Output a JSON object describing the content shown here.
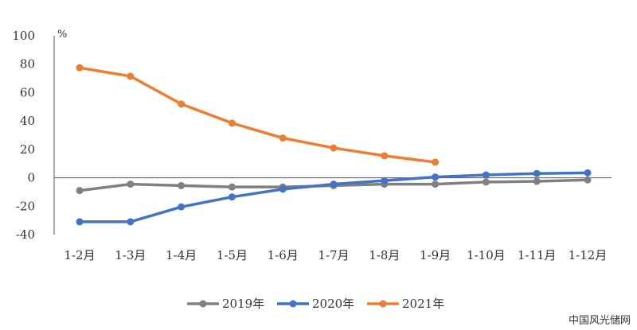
{
  "chart_data": {
    "type": "line",
    "categories": [
      "1-2月",
      "1-3月",
      "1-4月",
      "1-5月",
      "1-6月",
      "1-7月",
      "1-8月",
      "1-9月",
      "1-10月",
      "1-11月",
      "1-12月"
    ],
    "series": [
      {
        "name": "2019年",
        "color": "#808080",
        "values": [
          -9.0,
          -4.5,
          -5.5,
          -6.5,
          -6.5,
          -5.5,
          -4.5,
          -4.5,
          -3.0,
          -2.5,
          -1.5
        ]
      },
      {
        "name": "2020年",
        "color": "#4472C4",
        "values": [
          -31.0,
          -31.0,
          -20.5,
          -13.5,
          -8.0,
          -4.5,
          -2.0,
          0.5,
          2.0,
          3.0,
          3.5
        ]
      },
      {
        "name": "2021年",
        "color": "#ED7D31",
        "values": [
          77.5,
          71.5,
          52.0,
          38.5,
          28.0,
          21.0,
          15.5,
          11.0,
          null,
          null,
          null
        ]
      }
    ],
    "yunit": "%",
    "ylim": [
      -40,
      100
    ],
    "yticks": [
      "100",
      "80",
      "60",
      "40",
      "20",
      "0",
      "-20",
      "-40"
    ],
    "legend_position": "bottom-center",
    "grid": false
  },
  "watermark": "中国风光储网"
}
